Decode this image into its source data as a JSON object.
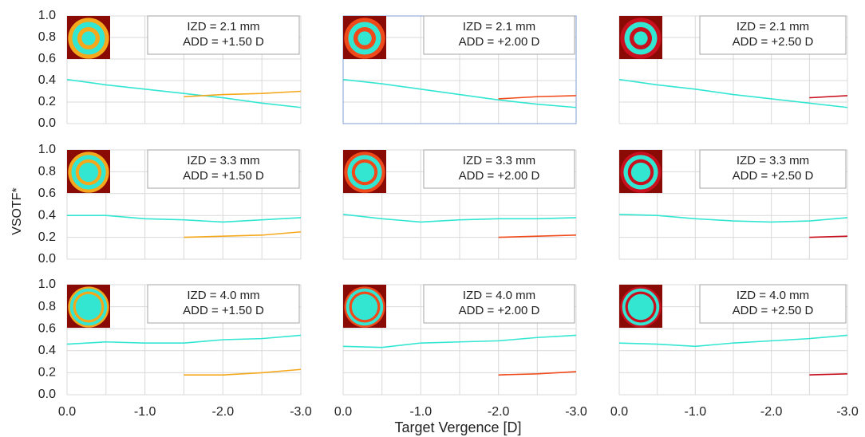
{
  "ylabel": "VSOTF*",
  "xlabel": "Target Vergence [D]",
  "chart_data": [
    {
      "type": "line",
      "annotations": [
        "IZD = 2.1 mm",
        "ADD = +1.50 D"
      ],
      "x": [
        0,
        -0.5,
        -1,
        -1.5,
        -2,
        -2.5,
        -3
      ],
      "series": [
        {
          "color": "#33e6d2",
          "values": [
            0.41,
            0.36,
            0.32,
            0.28,
            0.24,
            0.19,
            0.15
          ]
        },
        {
          "color": "#f5a81c",
          "values": [
            null,
            null,
            null,
            0.25,
            0.27,
            0.28,
            0.3
          ]
        }
      ],
      "xlim": [
        0,
        -3
      ],
      "ylim": [
        0,
        1
      ],
      "xticks": [
        {
          "value": 0,
          "label": "0.0"
        },
        {
          "value": -1,
          "label": "-1.0"
        },
        {
          "value": -2,
          "label": "-2.0"
        },
        {
          "value": -3,
          "label": "-3.0"
        }
      ],
      "xminor": [
        -0.5,
        -1.5,
        -2.5
      ],
      "yticks": [
        {
          "value": 0,
          "label": "0.0"
        },
        0.2,
        0.4,
        0.6,
        0.8,
        {
          "value": 1,
          "label": "1.0"
        }
      ],
      "grid": true
    },
    {
      "type": "line",
      "annotations": [
        "IZD = 2.1 mm",
        "ADD = +2.00 D"
      ],
      "x": [
        0,
        -0.5,
        -1,
        -1.5,
        -2,
        -2.5,
        -3
      ],
      "series": [
        {
          "color": "#33e6d2",
          "values": [
            0.41,
            0.37,
            0.32,
            0.27,
            0.22,
            0.18,
            0.15
          ]
        },
        {
          "color": "#f04a1a",
          "values": [
            null,
            null,
            null,
            null,
            0.23,
            0.25,
            0.26
          ]
        }
      ],
      "xlim": [
        0,
        -3
      ],
      "ylim": [
        0,
        1
      ],
      "xticks": [
        {
          "value": 0,
          "label": "0.0"
        },
        {
          "value": -1,
          "label": "-1.0"
        },
        {
          "value": -2,
          "label": "-2.0"
        },
        {
          "value": -3,
          "label": "-3.0"
        }
      ],
      "xminor": [
        -0.5,
        -1.5,
        -2.5
      ],
      "yticks": [
        {
          "value": 0,
          "label": "0.0"
        },
        0.2,
        0.4,
        0.6,
        0.8,
        {
          "value": 1,
          "label": "1.0"
        }
      ],
      "grid": true
    },
    {
      "type": "line",
      "annotations": [
        "IZD = 2.1 mm",
        "ADD = +2.50 D"
      ],
      "x": [
        0,
        -0.5,
        -1,
        -1.5,
        -2,
        -2.5,
        -3
      ],
      "series": [
        {
          "color": "#33e6d2",
          "values": [
            0.41,
            0.36,
            0.32,
            0.27,
            0.23,
            0.19,
            0.15
          ]
        },
        {
          "color": "#c8101e",
          "values": [
            null,
            null,
            null,
            null,
            null,
            0.24,
            0.26
          ]
        }
      ],
      "xlim": [
        0,
        -3
      ],
      "ylim": [
        0,
        1
      ],
      "xticks": [
        {
          "value": 0,
          "label": "0.0"
        },
        {
          "value": -1,
          "label": "-1.0"
        },
        {
          "value": -2,
          "label": "-2.0"
        },
        {
          "value": -3,
          "label": "-3.0"
        }
      ],
      "xminor": [
        -0.5,
        -1.5,
        -2.5
      ],
      "yticks": [
        {
          "value": 0,
          "label": "0.0"
        },
        0.2,
        0.4,
        0.6,
        0.8,
        {
          "value": 1,
          "label": "1.0"
        }
      ],
      "grid": true
    },
    {
      "type": "line",
      "annotations": [
        "IZD = 3.3 mm",
        "ADD = +1.50 D"
      ],
      "x": [
        0,
        -0.5,
        -1,
        -1.5,
        -2,
        -2.5,
        -3
      ],
      "series": [
        {
          "color": "#33e6d2",
          "values": [
            0.4,
            0.4,
            0.37,
            0.36,
            0.34,
            0.36,
            0.38
          ]
        },
        {
          "color": "#f5a81c",
          "values": [
            null,
            null,
            null,
            0.2,
            0.21,
            0.22,
            0.25
          ]
        }
      ],
      "xlim": [
        0,
        -3
      ],
      "ylim": [
        0,
        1
      ],
      "xticks": [
        {
          "value": 0,
          "label": "0.0"
        },
        {
          "value": -1,
          "label": "-1.0"
        },
        {
          "value": -2,
          "label": "-2.0"
        },
        {
          "value": -3,
          "label": "-3.0"
        }
      ],
      "xminor": [
        -0.5,
        -1.5,
        -2.5
      ],
      "yticks": [
        {
          "value": 0,
          "label": "0.0"
        },
        0.2,
        0.4,
        0.6,
        0.8,
        {
          "value": 1,
          "label": "1.0"
        }
      ],
      "grid": true
    },
    {
      "type": "line",
      "annotations": [
        "IZD = 3.3 mm",
        "ADD = +2.00 D"
      ],
      "x": [
        0,
        -0.5,
        -1,
        -1.5,
        -2,
        -2.5,
        -3
      ],
      "series": [
        {
          "color": "#33e6d2",
          "values": [
            0.41,
            0.37,
            0.34,
            0.36,
            0.37,
            0.37,
            0.38
          ]
        },
        {
          "color": "#f04a1a",
          "values": [
            null,
            null,
            null,
            null,
            0.2,
            0.21,
            0.22
          ]
        }
      ],
      "xlim": [
        0,
        -3
      ],
      "ylim": [
        0,
        1
      ],
      "xticks": [
        {
          "value": 0,
          "label": "0.0"
        },
        {
          "value": -1,
          "label": "-1.0"
        },
        {
          "value": -2,
          "label": "-2.0"
        },
        {
          "value": -3,
          "label": "-3.0"
        }
      ],
      "xminor": [
        -0.5,
        -1.5,
        -2.5
      ],
      "yticks": [
        {
          "value": 0,
          "label": "0.0"
        },
        0.2,
        0.4,
        0.6,
        0.8,
        {
          "value": 1,
          "label": "1.0"
        }
      ],
      "grid": true
    },
    {
      "type": "line",
      "annotations": [
        "IZD = 3.3 mm",
        "ADD = +2.50 D"
      ],
      "x": [
        0,
        -0.5,
        -1,
        -1.5,
        -2,
        -2.5,
        -3
      ],
      "series": [
        {
          "color": "#33e6d2",
          "values": [
            0.41,
            0.4,
            0.37,
            0.35,
            0.34,
            0.35,
            0.38
          ]
        },
        {
          "color": "#c8101e",
          "values": [
            null,
            null,
            null,
            null,
            null,
            0.2,
            0.21
          ]
        }
      ],
      "xlim": [
        0,
        -3
      ],
      "ylim": [
        0,
        1
      ],
      "xticks": [
        {
          "value": 0,
          "label": "0.0"
        },
        {
          "value": -1,
          "label": "-1.0"
        },
        {
          "value": -2,
          "label": "-2.0"
        },
        {
          "value": -3,
          "label": "-3.0"
        }
      ],
      "xminor": [
        -0.5,
        -1.5,
        -2.5
      ],
      "yticks": [
        {
          "value": 0,
          "label": "0.0"
        },
        0.2,
        0.4,
        0.6,
        0.8,
        {
          "value": 1,
          "label": "1.0"
        }
      ],
      "grid": true
    },
    {
      "type": "line",
      "annotations": [
        "IZD = 4.0 mm",
        "ADD = +1.50 D"
      ],
      "x": [
        0,
        -0.5,
        -1,
        -1.5,
        -2,
        -2.5,
        -3
      ],
      "series": [
        {
          "color": "#33e6d2",
          "values": [
            0.46,
            0.48,
            0.47,
            0.47,
            0.5,
            0.51,
            0.54
          ]
        },
        {
          "color": "#f5a81c",
          "values": [
            null,
            null,
            null,
            0.18,
            0.18,
            0.2,
            0.23
          ]
        }
      ],
      "xlim": [
        0,
        -3
      ],
      "ylim": [
        0,
        1
      ],
      "xticks": [
        {
          "value": 0,
          "label": "0.0"
        },
        {
          "value": -1,
          "label": "-1.0"
        },
        {
          "value": -2,
          "label": "-2.0"
        },
        {
          "value": -3,
          "label": "-3.0"
        }
      ],
      "xminor": [
        -0.5,
        -1.5,
        -2.5
      ],
      "yticks": [
        {
          "value": 0,
          "label": "0.0"
        },
        0.2,
        0.4,
        0.6,
        0.8,
        {
          "value": 1,
          "label": "1.0"
        }
      ],
      "grid": true
    },
    {
      "type": "line",
      "annotations": [
        "IZD = 4.0 mm",
        "ADD = +2.00 D"
      ],
      "x": [
        0,
        -0.5,
        -1,
        -1.5,
        -2,
        -2.5,
        -3
      ],
      "series": [
        {
          "color": "#33e6d2",
          "values": [
            0.44,
            0.43,
            0.47,
            0.48,
            0.49,
            0.52,
            0.54
          ]
        },
        {
          "color": "#f04a1a",
          "values": [
            null,
            null,
            null,
            null,
            0.18,
            0.19,
            0.21
          ]
        }
      ],
      "xlim": [
        0,
        -3
      ],
      "ylim": [
        0,
        1
      ],
      "xticks": [
        {
          "value": 0,
          "label": "0.0"
        },
        {
          "value": -1,
          "label": "-1.0"
        },
        {
          "value": -2,
          "label": "-2.0"
        },
        {
          "value": -3,
          "label": "-3.0"
        }
      ],
      "xminor": [
        -0.5,
        -1.5,
        -2.5
      ],
      "yticks": [
        {
          "value": 0,
          "label": "0.0"
        },
        0.2,
        0.4,
        0.6,
        0.8,
        {
          "value": 1,
          "label": "1.0"
        }
      ],
      "grid": true
    },
    {
      "type": "line",
      "annotations": [
        "IZD = 4.0 mm",
        "ADD = +2.50 D"
      ],
      "x": [
        0,
        -0.5,
        -1,
        -1.5,
        -2,
        -2.5,
        -3
      ],
      "series": [
        {
          "color": "#33e6d2",
          "values": [
            0.47,
            0.46,
            0.44,
            0.47,
            0.49,
            0.51,
            0.54
          ]
        },
        {
          "color": "#c8101e",
          "values": [
            null,
            null,
            null,
            null,
            null,
            0.18,
            0.19
          ]
        }
      ],
      "xlim": [
        0,
        -3
      ],
      "ylim": [
        0,
        1
      ],
      "xticks": [
        {
          "value": 0,
          "label": "0.0"
        },
        {
          "value": -1,
          "label": "-1.0"
        },
        {
          "value": -2,
          "label": "-2.0"
        },
        {
          "value": -3,
          "label": "-3.0"
        }
      ],
      "xminor": [
        -0.5,
        -1.5,
        -2.5
      ],
      "yticks": [
        {
          "value": 0,
          "label": "0.0"
        },
        0.2,
        0.4,
        0.6,
        0.8,
        {
          "value": 1,
          "label": "1.0"
        }
      ],
      "grid": true
    }
  ]
}
